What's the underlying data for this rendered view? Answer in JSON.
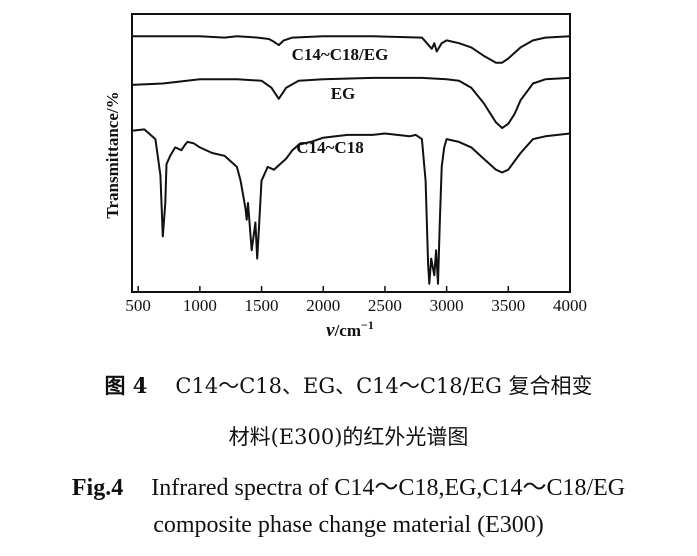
{
  "chart_data": {
    "type": "line",
    "xlabel_sym": "ν",
    "xlabel_unit": "/cm",
    "xlabel_sup": "−1",
    "ylabel": "Transmittance/%",
    "xlim": [
      450,
      4000
    ],
    "x_ticks": [
      500,
      1000,
      1500,
      2000,
      2500,
      3000,
      3500,
      4000
    ],
    "ylim": [
      0,
      100
    ],
    "y_ticks": [],
    "grid": false,
    "series": [
      {
        "name": "C14~C18/EG",
        "x": [
          450,
          700,
          1000,
          1200,
          1300,
          1470,
          1560,
          1600,
          1640,
          1680,
          1750,
          2000,
          2400,
          2800,
          2850,
          2880,
          2900,
          2920,
          2960,
          3000,
          3100,
          3200,
          3300,
          3400,
          3450,
          3500,
          3600,
          3700,
          3800,
          4000
        ],
        "y": [
          92,
          92,
          92,
          91.5,
          92,
          91.5,
          91,
          90,
          88.8,
          90.5,
          91.5,
          92,
          92,
          91.5,
          89,
          87.5,
          89.5,
          86.5,
          89.5,
          90.5,
          89.5,
          88,
          85,
          82.5,
          82.5,
          84,
          88,
          90.5,
          91.5,
          92
        ]
      },
      {
        "name": "EG",
        "x": [
          450,
          700,
          1000,
          1300,
          1500,
          1580,
          1640,
          1700,
          1800,
          2000,
          2400,
          2800,
          3000,
          3100,
          3200,
          3300,
          3400,
          3450,
          3500,
          3550,
          3600,
          3700,
          3800,
          4000
        ],
        "y": [
          74.5,
          75,
          76.5,
          76.5,
          76,
          73.5,
          69.5,
          73.5,
          76,
          76.5,
          77,
          77,
          76.5,
          76,
          73.5,
          68,
          61,
          59,
          60.5,
          64,
          69,
          75,
          76.5,
          77
        ]
      },
      {
        "name": "C14~C18",
        "x": [
          450,
          550,
          640,
          680,
          700,
          720,
          730,
          760,
          800,
          850,
          880,
          900,
          950,
          1000,
          1100,
          1200,
          1300,
          1330,
          1370,
          1380,
          1390,
          1420,
          1450,
          1465,
          1480,
          1500,
          1550,
          1600,
          1650,
          1700,
          1750,
          1800,
          1900,
          2000,
          2100,
          2200,
          2300,
          2400,
          2500,
          2600,
          2700,
          2750,
          2800,
          2830,
          2850,
          2860,
          2875,
          2900,
          2915,
          2930,
          2945,
          2960,
          2980,
          3000,
          3100,
          3200,
          3300,
          3400,
          3450,
          3500,
          3600,
          3700,
          3800,
          4000
        ],
        "y": [
          58,
          58.5,
          55,
          42,
          20,
          32,
          46,
          49,
          52,
          51,
          53,
          54,
          53.5,
          52,
          50,
          49,
          45,
          40,
          30,
          26,
          32,
          15,
          25,
          12,
          24,
          40,
          45,
          44,
          46,
          48,
          51,
          53,
          54,
          55.5,
          56,
          56.5,
          56.5,
          56.5,
          57,
          56.5,
          56,
          56.5,
          55,
          40,
          10,
          3,
          12,
          6,
          15,
          3,
          25,
          45,
          52,
          55,
          54,
          52,
          48,
          44,
          43,
          44,
          50,
          55,
          56,
          57
        ]
      }
    ],
    "annotations": [
      "C14~C18/EG",
      "EG",
      "C14~C18"
    ]
  },
  "caption": {
    "cn_fig": "图 4",
    "cn_line1": "C14～C18、EG、C14～C18/EG 复合相变",
    "cn_line2": "材料(E300)的红外光谱图",
    "en_fig": "Fig.4",
    "en_line1": "Infrared spectra of C14～C18,EG,C14～C18/EG",
    "en_line2": "composite phase change material (E300)"
  }
}
